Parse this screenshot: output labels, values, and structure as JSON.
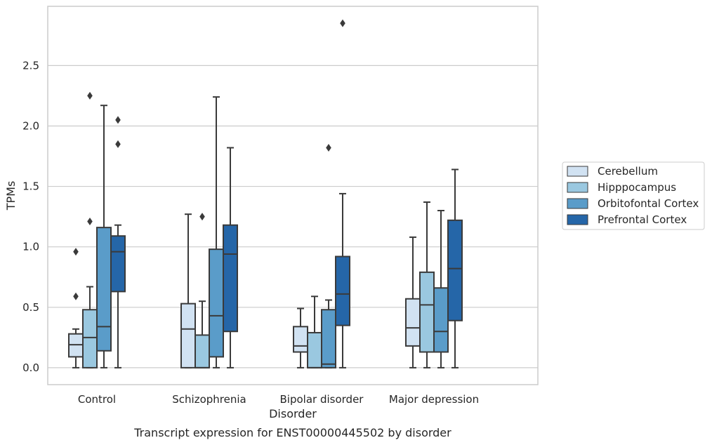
{
  "chart_data": {
    "type": "box",
    "caption": "Transcript expression for ENST00000445502 by disorder",
    "xlabel": "Disorder",
    "ylabel": "TPMs",
    "ylim": [
      -0.14,
      2.99
    ],
    "yticks": [
      0.0,
      0.5,
      1.0,
      1.5,
      2.0,
      2.5
    ],
    "ytick_labels": [
      "0.0",
      "0.5",
      "1.0",
      "1.5",
      "2.0",
      "2.5"
    ],
    "grid": "horizontal",
    "legend_position": "right",
    "categories": [
      "Control",
      "Schizophrenia",
      "Bipolar disorder",
      "Major depression"
    ],
    "series": [
      {
        "name": "Cerebellum",
        "color": "#d1e2f2",
        "boxes": [
          {
            "low": 0.0,
            "q1": 0.09,
            "median": 0.19,
            "q3": 0.28,
            "high": 0.32,
            "outliers": [
              0.59,
              0.96
            ]
          },
          {
            "low": 0.0,
            "q1": 0.0,
            "median": 0.32,
            "q3": 0.53,
            "high": 1.27,
            "outliers": []
          },
          {
            "low": 0.0,
            "q1": 0.13,
            "median": 0.18,
            "q3": 0.34,
            "high": 0.49,
            "outliers": []
          },
          {
            "low": 0.0,
            "q1": 0.18,
            "median": 0.33,
            "q3": 0.57,
            "high": 1.08,
            "outliers": []
          }
        ]
      },
      {
        "name": "Hipppocampus",
        "color": "#9ac8e0",
        "boxes": [
          {
            "low": 0.0,
            "q1": 0.0,
            "median": 0.25,
            "q3": 0.48,
            "high": 0.67,
            "outliers": [
              1.21,
              2.25
            ]
          },
          {
            "low": 0.0,
            "q1": 0.0,
            "median": 0.0,
            "q3": 0.27,
            "high": 0.55,
            "outliers": [
              1.25
            ]
          },
          {
            "low": 0.0,
            "q1": 0.0,
            "median": 0.0,
            "q3": 0.29,
            "high": 0.59,
            "outliers": []
          },
          {
            "low": 0.0,
            "q1": 0.13,
            "median": 0.52,
            "q3": 0.79,
            "high": 1.37,
            "outliers": []
          }
        ]
      },
      {
        "name": "Orbitofontal Cortex",
        "color": "#5a9cc9",
        "boxes": [
          {
            "low": 0.0,
            "q1": 0.14,
            "median": 0.34,
            "q3": 1.16,
            "high": 2.17,
            "outliers": []
          },
          {
            "low": 0.0,
            "q1": 0.09,
            "median": 0.43,
            "q3": 0.98,
            "high": 2.24,
            "outliers": []
          },
          {
            "low": 0.0,
            "q1": 0.0,
            "median": 0.03,
            "q3": 0.48,
            "high": 0.56,
            "outliers": [
              1.82
            ]
          },
          {
            "low": 0.0,
            "q1": 0.13,
            "median": 0.3,
            "q3": 0.66,
            "high": 1.3,
            "outliers": []
          }
        ]
      },
      {
        "name": "Prefrontal Cortex",
        "color": "#2566a8",
        "boxes": [
          {
            "low": 0.0,
            "q1": 0.63,
            "median": 0.96,
            "q3": 1.09,
            "high": 1.18,
            "outliers": [
              1.85,
              2.05
            ]
          },
          {
            "low": 0.0,
            "q1": 0.3,
            "median": 0.94,
            "q3": 1.18,
            "high": 1.82,
            "outliers": []
          },
          {
            "low": 0.0,
            "q1": 0.35,
            "median": 0.61,
            "q3": 0.92,
            "high": 1.44,
            "outliers": [
              2.85
            ]
          },
          {
            "low": 0.0,
            "q1": 0.39,
            "median": 0.82,
            "q3": 1.22,
            "high": 1.64,
            "outliers": []
          }
        ]
      }
    ]
  }
}
